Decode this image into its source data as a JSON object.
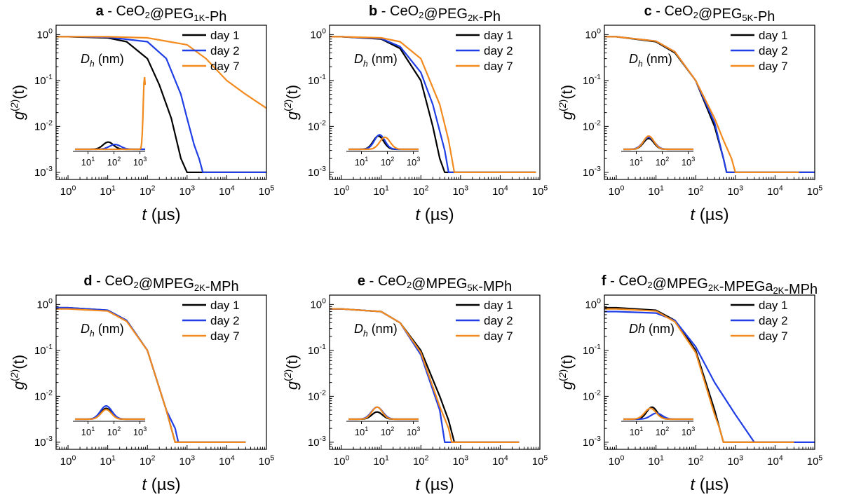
{
  "figure": {
    "colors": {
      "day 1": "#000000",
      "day 2": "#1f3ee6",
      "day 7": "#f28a1e"
    }
  },
  "chart_data": [
    {
      "type": "line",
      "panel": "a",
      "title_parts": [
        [
          "CeO",
          ""
        ],
        [
          "2",
          "sub"
        ],
        [
          "@PEG",
          ""
        ],
        [
          "1K",
          "sub"
        ],
        [
          "-Ph",
          ""
        ]
      ],
      "ylabel": "g(2)(t)",
      "xlabel": "t (µs)",
      "x_scale": "log",
      "y_scale": "log",
      "xlim": [
        0.5,
        100000
      ],
      "ylim": [
        0.0007,
        1.6
      ],
      "x_ticks": [
        "10^0",
        "10^1",
        "10^2",
        "10^3",
        "10^4",
        "10^5"
      ],
      "y_ticks": [
        "10^-3",
        "10^-2",
        "10^-1",
        "10^0"
      ],
      "legend": [
        "day 1",
        "day 2",
        "day 7"
      ],
      "legend_position": "top-right",
      "series": [
        {
          "name": "day 1",
          "color": "#000000",
          "x": [
            0.5,
            1,
            10,
            30,
            100,
            200,
            400,
            700,
            1000,
            1500,
            2000,
            3000,
            5000,
            100000
          ],
          "y": [
            0.9,
            0.9,
            0.85,
            0.7,
            0.3,
            0.08,
            0.015,
            0.002,
            0.001,
            0.001,
            0.001,
            0.001,
            0.001,
            0.001
          ]
        },
        {
          "name": "day 2",
          "color": "#1f3ee6",
          "x": [
            0.5,
            1,
            10,
            100,
            300,
            700,
            1000,
            1500,
            2000,
            2500,
            3000,
            5000,
            10000,
            100000
          ],
          "y": [
            0.9,
            0.9,
            0.88,
            0.7,
            0.3,
            0.05,
            0.015,
            0.004,
            0.002,
            0.001,
            0.001,
            0.001,
            0.001,
            0.001
          ]
        },
        {
          "name": "day 7",
          "color": "#f28a1e",
          "x": [
            0.5,
            1,
            10,
            100,
            1000,
            3000,
            10000,
            30000,
            100000
          ],
          "y": [
            0.9,
            0.9,
            0.9,
            0.85,
            0.6,
            0.3,
            0.1,
            0.05,
            0.025
          ]
        }
      ],
      "inset": {
        "label": "Dh (nm)",
        "x_ticks": [
          "10^1",
          "10^2",
          "10^3"
        ],
        "series": [
          {
            "name": "day 1",
            "center": 60,
            "peak": 0.03,
            "width": 0.2
          },
          {
            "name": "day 2",
            "center": 110,
            "peak": 0.02,
            "width": 0.22
          },
          {
            "name": "day 7",
            "center": 1500,
            "peak": 0.3,
            "width": 0.05
          }
        ]
      }
    },
    {
      "type": "line",
      "panel": "b",
      "title_parts": [
        [
          "CeO",
          ""
        ],
        [
          "2",
          "sub"
        ],
        [
          "@PEG",
          ""
        ],
        [
          "2K",
          "sub"
        ],
        [
          "-Ph",
          ""
        ]
      ],
      "ylabel": "g(2)(t)",
      "xlabel": "t (µs)",
      "x_scale": "log",
      "y_scale": "log",
      "xlim": [
        0.5,
        100000
      ],
      "ylim": [
        0.0007,
        1.6
      ],
      "x_ticks": [
        "10^0",
        "10^1",
        "10^2",
        "10^3",
        "10^4",
        "10^5"
      ],
      "y_ticks": [
        "10^-3",
        "10^-2",
        "10^-1",
        "10^0"
      ],
      "legend": [
        "day 1",
        "day 2",
        "day 7"
      ],
      "legend_position": "top-right",
      "series": [
        {
          "name": "day 1",
          "color": "#000000",
          "x": [
            0.5,
            1,
            10,
            30,
            100,
            200,
            300,
            400,
            80000
          ],
          "y": [
            0.9,
            0.9,
            0.8,
            0.5,
            0.1,
            0.01,
            0.002,
            0.001,
            0.001
          ]
        },
        {
          "name": "day 2",
          "color": "#1f3ee6",
          "x": [
            0.5,
            1,
            10,
            30,
            100,
            200,
            400,
            500,
            80000
          ],
          "y": [
            0.9,
            0.9,
            0.82,
            0.55,
            0.15,
            0.03,
            0.003,
            0.001,
            0.001
          ]
        },
        {
          "name": "day 7",
          "color": "#f28a1e",
          "x": [
            0.5,
            1,
            10,
            30,
            100,
            300,
            500,
            700,
            800,
            80000
          ],
          "y": [
            0.9,
            0.9,
            0.85,
            0.7,
            0.3,
            0.03,
            0.005,
            0.001,
            0.001,
            0.001
          ]
        }
      ],
      "inset": {
        "label": "Dh (nm)",
        "x_ticks": [
          "10^1",
          "10^2",
          "10^3"
        ],
        "series": [
          {
            "name": "day 1",
            "center": 45,
            "peak": 0.055,
            "width": 0.2
          },
          {
            "name": "day 2",
            "center": 50,
            "peak": 0.06,
            "width": 0.2
          },
          {
            "name": "day 7",
            "center": 80,
            "peak": 0.05,
            "width": 0.2
          }
        ]
      }
    },
    {
      "type": "line",
      "panel": "c",
      "title_parts": [
        [
          "CeO",
          ""
        ],
        [
          "2",
          "sub"
        ],
        [
          "@PEG",
          ""
        ],
        [
          "5K",
          "sub"
        ],
        [
          "-Ph",
          ""
        ]
      ],
      "ylabel": "g(2)(t)",
      "xlabel": "t (µs)",
      "x_scale": "log",
      "y_scale": "log",
      "xlim": [
        0.5,
        100000
      ],
      "ylim": [
        0.0007,
        1.6
      ],
      "x_ticks": [
        "10^0",
        "10^1",
        "10^2",
        "10^3",
        "10^4",
        "10^5"
      ],
      "y_ticks": [
        "10^-3",
        "10^-2",
        "10^-1",
        "10^0"
      ],
      "legend": [
        "day 1",
        "day 2",
        "day 7"
      ],
      "legend_position": "top-right",
      "series": [
        {
          "name": "day 1",
          "color": "#000000",
          "x": [
            0.5,
            1,
            10,
            30,
            100,
            300,
            500,
            600,
            700,
            100000
          ],
          "y": [
            0.9,
            0.9,
            0.7,
            0.4,
            0.1,
            0.01,
            0.002,
            0.001,
            0.001,
            0.001
          ]
        },
        {
          "name": "day 2",
          "color": "#1f3ee6",
          "x": [
            0.5,
            1,
            10,
            30,
            100,
            300,
            500,
            600,
            700,
            100000
          ],
          "y": [
            0.9,
            0.9,
            0.72,
            0.42,
            0.1,
            0.012,
            0.002,
            0.001,
            0.001,
            0.001
          ]
        },
        {
          "name": "day 7",
          "color": "#f28a1e",
          "x": [
            0.5,
            1,
            10,
            30,
            100,
            300,
            500,
            800,
            1000,
            40000
          ],
          "y": [
            0.9,
            0.9,
            0.72,
            0.42,
            0.1,
            0.015,
            0.005,
            0.002,
            0.001,
            0.001
          ]
        }
      ],
      "inset": {
        "label": "Dh (nm)",
        "x_ticks": [
          "10^1",
          "10^2",
          "10^3"
        ],
        "series": [
          {
            "name": "day 1",
            "center": 30,
            "peak": 0.045,
            "width": 0.2
          },
          {
            "name": "day 2",
            "center": 30,
            "peak": 0.05,
            "width": 0.22
          },
          {
            "name": "day 7",
            "center": 30,
            "peak": 0.055,
            "width": 0.2
          }
        ]
      }
    },
    {
      "type": "line",
      "panel": "d",
      "title_parts": [
        [
          "CeO",
          ""
        ],
        [
          "2",
          "sub"
        ],
        [
          "@MPEG",
          ""
        ],
        [
          "2K",
          "sub"
        ],
        [
          "-MPh",
          ""
        ]
      ],
      "ylabel": "g(2)(t)",
      "xlabel": "t (µs)",
      "x_scale": "log",
      "y_scale": "log",
      "xlim": [
        0.5,
        100000
      ],
      "ylim": [
        0.0007,
        1.6
      ],
      "x_ticks": [
        "10^0",
        "10^1",
        "10^2",
        "10^3",
        "10^4",
        "10^5"
      ],
      "y_ticks": [
        "10^-3",
        "10^-2",
        "10^-1",
        "10^0"
      ],
      "legend": [
        "day 1",
        "day 2",
        "day 7"
      ],
      "legend_position": "top-right",
      "series": [
        {
          "name": "day 1",
          "color": "#000000",
          "x": [
            0.5,
            1,
            10,
            30,
            100,
            300,
            500,
            600,
            30000
          ],
          "y": [
            0.85,
            0.85,
            0.75,
            0.45,
            0.1,
            0.005,
            0.001,
            0.001,
            0.001
          ]
        },
        {
          "name": "day 2",
          "color": "#1f3ee6",
          "x": [
            0.5,
            1,
            10,
            30,
            100,
            300,
            500,
            600,
            30000
          ],
          "y": [
            0.85,
            0.85,
            0.75,
            0.45,
            0.1,
            0.005,
            0.002,
            0.001,
            0.001
          ]
        },
        {
          "name": "day 7",
          "color": "#f28a1e",
          "x": [
            0.5,
            1,
            10,
            30,
            100,
            300,
            500,
            600,
            30000
          ],
          "y": [
            0.8,
            0.8,
            0.72,
            0.43,
            0.1,
            0.005,
            0.001,
            0.001,
            0.001
          ]
        }
      ],
      "inset": {
        "label": "Dh (nm)",
        "x_ticks": [
          "10^1",
          "10^2",
          "10^3"
        ],
        "series": [
          {
            "name": "day 1",
            "center": 50,
            "peak": 0.045,
            "width": 0.2
          },
          {
            "name": "day 2",
            "center": 50,
            "peak": 0.055,
            "width": 0.22
          },
          {
            "name": "day 7",
            "center": 50,
            "peak": 0.04,
            "width": 0.2
          }
        ]
      }
    },
    {
      "type": "line",
      "panel": "e",
      "title_parts": [
        [
          "CeO",
          ""
        ],
        [
          "2",
          "sub"
        ],
        [
          "@MPEG",
          ""
        ],
        [
          "5K",
          "sub"
        ],
        [
          "-MPh",
          ""
        ]
      ],
      "ylabel": "g(2)(t)",
      "xlabel": "t (µs)",
      "x_scale": "log",
      "y_scale": "log",
      "xlim": [
        0.5,
        100000
      ],
      "ylim": [
        0.0007,
        1.6
      ],
      "x_ticks": [
        "10^0",
        "10^1",
        "10^2",
        "10^3",
        "10^4",
        "10^5"
      ],
      "y_ticks": [
        "10^-3",
        "10^-2",
        "10^-1",
        "10^0"
      ],
      "legend": [
        "day 1",
        "day 2",
        "day 7"
      ],
      "legend_position": "top-right",
      "series": [
        {
          "name": "day 1",
          "color": "#000000",
          "x": [
            0.5,
            1,
            10,
            30,
            100,
            300,
            500,
            700,
            30000
          ],
          "y": [
            0.8,
            0.8,
            0.7,
            0.4,
            0.1,
            0.01,
            0.003,
            0.001,
            0.001
          ]
        },
        {
          "name": "day 2",
          "color": "#1f3ee6",
          "x": [
            0.5,
            1,
            10,
            30,
            100,
            300,
            400,
            500,
            30000
          ],
          "y": [
            0.8,
            0.8,
            0.7,
            0.4,
            0.08,
            0.005,
            0.001,
            0.001,
            0.001
          ]
        },
        {
          "name": "day 7",
          "color": "#f28a1e",
          "x": [
            0.5,
            1,
            10,
            30,
            100,
            300,
            500,
            600,
            30000
          ],
          "y": [
            0.8,
            0.8,
            0.7,
            0.4,
            0.09,
            0.006,
            0.002,
            0.001,
            0.001
          ]
        }
      ],
      "inset": {
        "label": "Dh (nm)",
        "x_ticks": [
          "10^1",
          "10^2",
          "10^3"
        ],
        "series": [
          {
            "name": "day 1",
            "center": 40,
            "peak": 0.03,
            "width": 0.2
          },
          {
            "name": "day 2",
            "center": 40,
            "peak": 0.05,
            "width": 0.22
          },
          {
            "name": "day 7",
            "center": 40,
            "peak": 0.05,
            "width": 0.2
          }
        ]
      }
    },
    {
      "type": "line",
      "panel": "f",
      "title_parts": [
        [
          "CeO",
          ""
        ],
        [
          "2",
          "sub"
        ],
        [
          "@MPEG",
          ""
        ],
        [
          "2K",
          "sub"
        ],
        [
          "-MPEGa",
          ""
        ],
        [
          "2K",
          "sub"
        ],
        [
          "-MPh",
          ""
        ]
      ],
      "ylabel": "g(2)(t)",
      "xlabel": "t (µs)",
      "x_scale": "log",
      "y_scale": "log",
      "xlim": [
        0.5,
        100000
      ],
      "ylim": [
        0.0007,
        1.6
      ],
      "x_ticks": [
        "10^0",
        "10^1",
        "10^2",
        "10^3",
        "10^4",
        "10^5"
      ],
      "y_ticks": [
        "10^-3",
        "10^-2",
        "10^-1",
        "10^0"
      ],
      "legend": [
        "day 1",
        "day 2",
        "day 7"
      ],
      "legend_position": "top-right",
      "series": [
        {
          "name": "day 1",
          "color": "#000000",
          "x": [
            0.5,
            1,
            10,
            30,
            100,
            300,
            400,
            500,
            30000
          ],
          "y": [
            0.85,
            0.85,
            0.75,
            0.45,
            0.1,
            0.005,
            0.002,
            0.001,
            0.001
          ]
        },
        {
          "name": "day 2",
          "color": "#1f3ee6",
          "x": [
            0.5,
            1,
            10,
            30,
            100,
            300,
            1000,
            3000,
            5000,
            100000
          ],
          "y": [
            0.7,
            0.7,
            0.65,
            0.45,
            0.12,
            0.02,
            0.004,
            0.001,
            0.001,
            0.001
          ]
        },
        {
          "name": "day 7",
          "color": "#f28a1e",
          "x": [
            0.5,
            1,
            10,
            30,
            100,
            300,
            400,
            500,
            30000
          ],
          "y": [
            0.8,
            0.8,
            0.72,
            0.42,
            0.09,
            0.004,
            0.002,
            0.001,
            0.001
          ]
        }
      ],
      "inset": {
        "label": "Dh (nm)",
        "x_ticks": [
          "10^1",
          "10^2",
          "10^3"
        ],
        "series": [
          {
            "name": "day 1",
            "center": 40,
            "peak": 0.05,
            "width": 0.2
          },
          {
            "name": "day 2",
            "center": 60,
            "peak": 0.025,
            "width": 0.22
          },
          {
            "name": "day 7",
            "center": 35,
            "peak": 0.045,
            "width": 0.22
          }
        ]
      }
    }
  ]
}
